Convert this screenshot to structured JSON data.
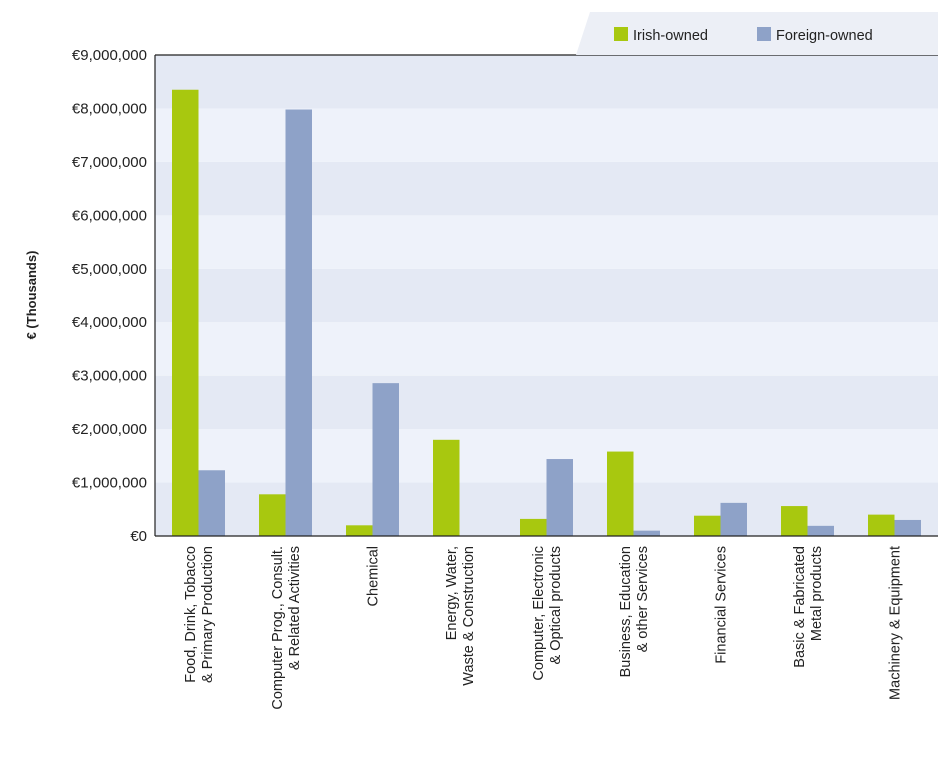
{
  "chart_data": {
    "type": "bar",
    "ylabel": "€ (Thousands)",
    "ylim": [
      0,
      9000000
    ],
    "yticks": [
      0,
      1000000,
      2000000,
      3000000,
      4000000,
      5000000,
      6000000,
      7000000,
      8000000,
      9000000
    ],
    "ytick_labels": [
      "€0",
      "€1,000,000",
      "€2,000,000",
      "€3,000,000",
      "€4,000,000",
      "€5,000,000",
      "€6,000,000",
      "€7,000,000",
      "€8,000,000",
      "€9,000,000"
    ],
    "categories": [
      [
        "Food, Drink, Tobacco",
        "& Primary Production"
      ],
      [
        "Computer Prog., Consult.",
        "& Related Activities"
      ],
      [
        "Chemical"
      ],
      [
        "Energy, Water,",
        "Waste & Construction"
      ],
      [
        "Computer, Electronic",
        "& Optical products"
      ],
      [
        "Business, Education",
        "& other Services"
      ],
      [
        "Financial Services"
      ],
      [
        "Basic & Fabricated",
        "Metal products"
      ],
      [
        "Machinery & Equipment"
      ]
    ],
    "series": [
      {
        "name": "Irish-owned",
        "color": "#a8c80f",
        "values": [
          8350000,
          780000,
          200000,
          1800000,
          320000,
          1580000,
          380000,
          560000,
          400000
        ]
      },
      {
        "name": "Foreign-owned",
        "color": "#8ea2c8",
        "values": [
          1230000,
          7980000,
          2860000,
          0,
          1440000,
          100000,
          620000,
          190000,
          300000
        ]
      }
    ],
    "legend_position": "top-right",
    "grid": "horizontal bands",
    "band_colors": [
      "#e4e9f4",
      "#eef2fa"
    ]
  }
}
